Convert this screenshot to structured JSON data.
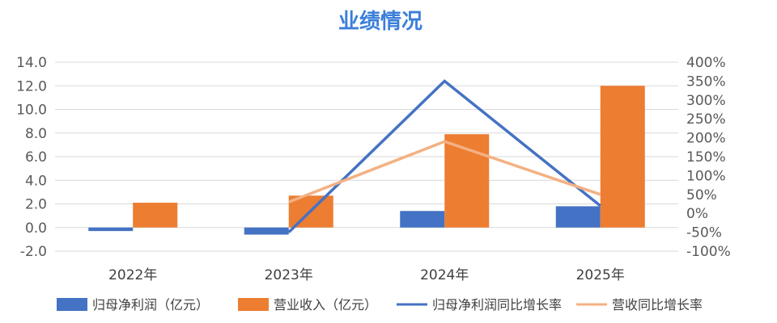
{
  "chart_data": {
    "type": "bar",
    "title": "业绩情况",
    "categories": [
      "2022年",
      "2023年",
      "2024年",
      "2025年"
    ],
    "series": [
      {
        "name": "归母净利润（亿元）",
        "type": "bar",
        "axis": "left",
        "color": "#4472c4",
        "values": [
          -0.3,
          -0.6,
          1.4,
          1.8
        ]
      },
      {
        "name": "营业收入（亿元）",
        "type": "bar",
        "axis": "left",
        "color": "#ed7d31",
        "values": [
          2.1,
          2.7,
          7.9,
          12.0
        ]
      },
      {
        "name": "归母净利润同比增长率",
        "type": "line",
        "axis": "right",
        "color": "#4472c4",
        "values": [
          null,
          -50,
          350,
          20
        ]
      },
      {
        "name": "营收同比增长率",
        "type": "line",
        "axis": "right",
        "color": "#f4b183",
        "values": [
          null,
          30,
          190,
          50
        ]
      }
    ],
    "y_left": {
      "min": -2.0,
      "max": 14.0,
      "ticks": [
        "-2.0",
        "0.0",
        "2.0",
        "4.0",
        "6.0",
        "8.0",
        "10.0",
        "12.0",
        "14.0"
      ]
    },
    "y_right": {
      "min": -100,
      "max": 400,
      "ticks": [
        "-100%",
        "-50%",
        "0%",
        "50%",
        "100%",
        "150%",
        "200%",
        "250%",
        "300%",
        "350%",
        "400%"
      ]
    },
    "grid": true,
    "legend_position": "bottom"
  }
}
